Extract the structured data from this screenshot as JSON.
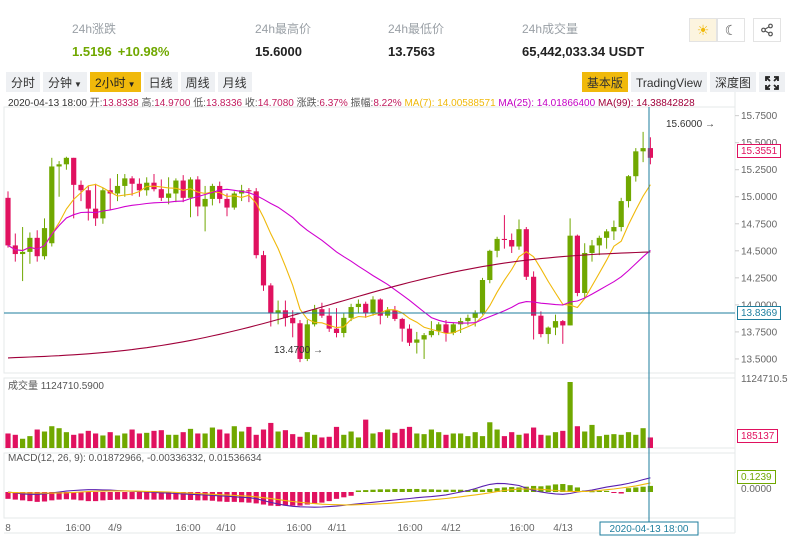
{
  "stats": {
    "change": {
      "label": "24h涨跌",
      "value": "1.5196",
      "percent": "+10.98%"
    },
    "high": {
      "label": "24h最高价",
      "value": "15.6000"
    },
    "low": {
      "label": "24h最低价",
      "value": "13.7563"
    },
    "volume": {
      "label": "24h成交量",
      "value": "65,442,033.34 USDT"
    }
  },
  "header_icons": [
    "sun-icon",
    "moon-icon",
    "share-icon"
  ],
  "toolbar": {
    "intervals": [
      {
        "label": "分时",
        "active": false,
        "dropdown": false
      },
      {
        "label": "分钟",
        "active": false,
        "dropdown": true
      },
      {
        "label": "2小时",
        "active": true,
        "dropdown": true
      },
      {
        "label": "日线",
        "active": false,
        "dropdown": false
      },
      {
        "label": "周线",
        "active": false,
        "dropdown": false
      },
      {
        "label": "月线",
        "active": false,
        "dropdown": false
      }
    ],
    "views": [
      {
        "label": "基本版",
        "active": true
      },
      {
        "label": "TradingView",
        "active": false
      },
      {
        "label": "深度图",
        "active": false
      }
    ]
  },
  "legend": {
    "time": "2020-04-13 18:00",
    "open_label": "开:",
    "open": "13.8338",
    "high_label": "高:",
    "high": "14.9700",
    "low_label": "低:",
    "low": "13.8336",
    "close_label": "收:",
    "close": "14.7080",
    "chg_label": "涨跌:",
    "chg": "6.37%",
    "amp_label": "振幅:",
    "amp": "8.22%",
    "ma7": "MA(7): 14.00588571",
    "ma25": "MA(25): 14.01866400",
    "ma99": "MA(99): 14.38842828"
  },
  "volume_legend": "成交量 1124710.5900",
  "macd_legend": "MACD(12, 26, 9): 0.01872966, -0.00336332, 0.01536634",
  "annotations": {
    "max_label": "15.6000",
    "min_label": "13.4700"
  },
  "price_tags": {
    "last": "15.3551",
    "cross": "13.8369",
    "volume_last": "185137",
    "volume_top": "1124710.5",
    "macd_last": "0.1239"
  },
  "colors": {
    "up": "#70a800",
    "down": "#e0115f",
    "ma7": "#f0b90b",
    "ma25": "#d000d0",
    "ma99": "#a0003a",
    "crosshair": "#1e7e9e",
    "accent": "#f0b90b"
  },
  "chart_data": {
    "type": "candlestick",
    "y_ticks": [
      "15.7500",
      "15.5000",
      "15.2500",
      "15.0000",
      "14.7500",
      "14.5000",
      "14.2500",
      "14.0000",
      "13.7500",
      "13.5000"
    ],
    "ylim": [
      13.37,
      15.83
    ],
    "x_ticks": [
      "8",
      "16:00",
      "4/9",
      "16:00",
      "4/10",
      "16:00",
      "4/11",
      "16:00",
      "4/12",
      "16:00",
      "4/13"
    ],
    "crosshair_time": "2020-04-13 18:00",
    "volume_axis_label": "1124710.5",
    "macd_axis_labels": [
      "0.1239",
      "0.0000"
    ],
    "candles": [
      [
        14.99,
        15.05,
        14.53,
        14.55
      ],
      [
        14.55,
        14.66,
        14.4,
        14.47
      ],
      [
        14.47,
        14.72,
        14.22,
        14.49
      ],
      [
        14.49,
        14.67,
        14.38,
        14.62
      ],
      [
        14.62,
        14.69,
        14.4,
        14.45
      ],
      [
        14.45,
        14.8,
        14.42,
        14.71
      ],
      [
        14.57,
        15.36,
        14.54,
        15.28
      ],
      [
        15.28,
        15.33,
        15.0,
        15.3
      ],
      [
        15.3,
        15.37,
        15.25,
        15.36
      ],
      [
        15.36,
        15.36,
        14.8,
        15.11
      ],
      [
        15.11,
        15.15,
        14.96,
        15.06
      ],
      [
        15.06,
        15.1,
        14.78,
        14.89
      ],
      [
        14.89,
        15.12,
        14.73,
        14.8
      ],
      [
        14.8,
        15.08,
        14.75,
        15.06
      ],
      [
        15.06,
        15.17,
        14.88,
        15.03
      ],
      [
        15.03,
        15.21,
        14.96,
        15.1
      ],
      [
        15.1,
        15.21,
        15.0,
        15.17
      ],
      [
        15.17,
        15.19,
        15.01,
        15.12
      ],
      [
        15.12,
        15.17,
        15.0,
        15.06
      ],
      [
        15.06,
        15.18,
        15.01,
        15.13
      ],
      [
        15.13,
        15.21,
        15.05,
        15.07
      ],
      [
        15.07,
        15.16,
        14.96,
        14.99
      ],
      [
        14.99,
        15.18,
        14.93,
        15.03
      ],
      [
        15.03,
        15.17,
        14.95,
        15.15
      ],
      [
        15.15,
        15.2,
        14.95,
        14.99
      ],
      [
        14.99,
        15.18,
        14.81,
        15.16
      ],
      [
        15.16,
        15.19,
        14.82,
        14.91
      ],
      [
        14.91,
        15.1,
        14.68,
        14.98
      ],
      [
        14.98,
        15.12,
        14.92,
        15.1
      ],
      [
        15.1,
        15.14,
        14.94,
        14.98
      ],
      [
        14.98,
        15.03,
        14.82,
        14.9
      ],
      [
        14.9,
        15.05,
        14.88,
        15.03
      ],
      [
        15.03,
        15.11,
        14.96,
        15.06
      ],
      [
        15.06,
        15.08,
        14.95,
        15.05
      ],
      [
        15.05,
        15.08,
        14.43,
        14.46
      ],
      [
        14.46,
        14.5,
        14.13,
        14.18
      ],
      [
        14.18,
        14.2,
        13.8,
        13.92
      ],
      [
        13.92,
        14.04,
        13.82,
        13.95
      ],
      [
        13.95,
        14.04,
        13.8,
        13.88
      ],
      [
        13.88,
        13.95,
        13.7,
        13.83
      ],
      [
        13.83,
        13.86,
        13.47,
        13.5
      ],
      [
        13.5,
        13.86,
        13.48,
        13.82
      ],
      [
        13.82,
        14.0,
        13.8,
        13.96
      ],
      [
        13.96,
        14.02,
        13.88,
        13.9
      ],
      [
        13.9,
        13.97,
        13.75,
        13.78
      ],
      [
        13.78,
        13.97,
        13.7,
        13.74
      ],
      [
        13.74,
        13.92,
        13.7,
        13.88
      ],
      [
        13.88,
        14.01,
        13.85,
        13.98
      ],
      [
        13.98,
        14.05,
        13.92,
        14.01
      ],
      [
        14.01,
        14.03,
        13.88,
        13.92
      ],
      [
        13.92,
        14.08,
        13.9,
        14.05
      ],
      [
        14.05,
        14.06,
        13.82,
        13.9
      ],
      [
        13.9,
        13.98,
        13.88,
        13.95
      ],
      [
        13.95,
        13.99,
        13.85,
        13.87
      ],
      [
        13.87,
        13.88,
        13.66,
        13.78
      ],
      [
        13.78,
        13.82,
        13.62,
        13.65
      ],
      [
        13.65,
        13.75,
        13.55,
        13.68
      ],
      [
        13.68,
        13.74,
        13.5,
        13.72
      ],
      [
        13.72,
        13.85,
        13.7,
        13.76
      ],
      [
        13.76,
        13.84,
        13.72,
        13.82
      ],
      [
        13.82,
        13.86,
        13.66,
        13.74
      ],
      [
        13.74,
        13.84,
        13.72,
        13.82
      ],
      [
        13.82,
        13.88,
        13.74,
        13.85
      ],
      [
        13.85,
        13.91,
        13.81,
        13.88
      ],
      [
        13.88,
        13.95,
        13.8,
        13.93
      ],
      [
        13.93,
        14.25,
        13.91,
        14.23
      ],
      [
        14.23,
        14.51,
        14.2,
        14.5
      ],
      [
        14.5,
        14.63,
        14.44,
        14.61
      ],
      [
        14.61,
        14.83,
        14.52,
        14.6
      ],
      [
        14.6,
        14.66,
        14.48,
        14.54
      ],
      [
        14.54,
        14.79,
        14.51,
        14.7
      ],
      [
        14.7,
        14.72,
        14.23,
        14.26
      ],
      [
        14.26,
        14.31,
        13.68,
        13.9
      ],
      [
        13.9,
        13.94,
        13.7,
        13.73
      ],
      [
        13.73,
        13.8,
        13.64,
        13.79
      ],
      [
        13.79,
        13.91,
        13.72,
        13.85
      ],
      [
        13.85,
        13.86,
        13.64,
        13.81
      ],
      [
        13.81,
        14.8,
        13.81,
        14.64
      ],
      [
        14.64,
        14.65,
        14.08,
        14.11
      ],
      [
        14.11,
        14.57,
        14.06,
        14.48
      ],
      [
        14.48,
        14.6,
        14.4,
        14.55
      ],
      [
        14.55,
        14.64,
        14.46,
        14.62
      ],
      [
        14.62,
        14.7,
        14.52,
        14.68
      ],
      [
        14.68,
        14.78,
        14.6,
        14.72
      ],
      [
        14.72,
        14.99,
        14.68,
        14.96
      ],
      [
        14.96,
        15.2,
        14.9,
        15.19
      ],
      [
        15.19,
        15.45,
        15.14,
        15.42
      ],
      [
        15.42,
        15.6,
        15.32,
        15.45
      ],
      [
        15.45,
        15.55,
        15.3,
        15.36
      ]
    ],
    "volumes": [
      0.22,
      0.2,
      0.14,
      0.18,
      0.28,
      0.25,
      0.33,
      0.3,
      0.24,
      0.2,
      0.22,
      0.26,
      0.22,
      0.19,
      0.24,
      0.19,
      0.22,
      0.28,
      0.22,
      0.23,
      0.26,
      0.27,
      0.2,
      0.2,
      0.24,
      0.29,
      0.22,
      0.22,
      0.31,
      0.28,
      0.22,
      0.33,
      0.25,
      0.32,
      0.2,
      0.28,
      0.38,
      0.25,
      0.27,
      0.21,
      0.17,
      0.24,
      0.2,
      0.16,
      0.17,
      0.32,
      0.2,
      0.25,
      0.16,
      0.43,
      0.22,
      0.24,
      0.28,
      0.23,
      0.29,
      0.32,
      0.22,
      0.21,
      0.28,
      0.24,
      0.2,
      0.22,
      0.22,
      0.18,
      0.24,
      0.18,
      0.39,
      0.28,
      0.18,
      0.24,
      0.2,
      0.22,
      0.31,
      0.2,
      0.19,
      0.24,
      0.26,
      1.0,
      0.33,
      0.25,
      0.35,
      0.18,
      0.2,
      0.21,
      0.2,
      0.24,
      0.2,
      0.3,
      0.16
    ],
    "macd_hist": [
      -0.018,
      -0.02,
      -0.022,
      -0.024,
      -0.026,
      -0.025,
      -0.022,
      -0.02,
      -0.019,
      -0.02,
      -0.022,
      -0.024,
      -0.024,
      -0.022,
      -0.021,
      -0.02,
      -0.019,
      -0.019,
      -0.019,
      -0.02,
      -0.02,
      -0.02,
      -0.02,
      -0.02,
      -0.021,
      -0.021,
      -0.022,
      -0.022,
      -0.023,
      -0.025,
      -0.026,
      -0.026,
      -0.027,
      -0.028,
      -0.03,
      -0.033,
      -0.036,
      -0.037,
      -0.036,
      -0.036,
      -0.036,
      -0.033,
      -0.03,
      -0.028,
      -0.024,
      -0.018,
      -0.014,
      -0.01,
      0.004,
      0.005,
      0.006,
      0.007,
      0.007,
      0.008,
      0.008,
      0.008,
      0.008,
      0.007,
      0.007,
      0.006,
      0.006,
      0.006,
      0.006,
      0.005,
      0.007,
      0.006,
      0.008,
      0.01,
      0.012,
      0.013,
      0.012,
      0.014,
      0.016,
      0.015,
      0.017,
      0.02,
      0.021,
      0.018,
      0.012,
      0.004,
      0.002,
      0.003,
      0.003,
      -0.002,
      -0.004,
      0.01,
      0.012,
      0.014,
      0.016
    ],
    "macd_line": [
      0.0,
      -0.005,
      -0.01,
      -0.012,
      -0.012,
      -0.01,
      -0.005,
      0.0,
      0.005,
      0.008,
      0.01,
      0.012,
      0.012,
      0.011,
      0.01,
      0.008,
      0.006,
      0.004,
      0.002,
      0.0,
      -0.002,
      -0.004,
      -0.006,
      -0.008,
      -0.01,
      -0.012,
      -0.014,
      -0.016,
      -0.018,
      -0.02,
      -0.022,
      -0.025,
      -0.028,
      -0.03,
      -0.035,
      -0.045,
      -0.055,
      -0.063,
      -0.07,
      -0.075,
      -0.078,
      -0.079,
      -0.08,
      -0.079,
      -0.077,
      -0.074,
      -0.07,
      -0.066,
      -0.062,
      -0.058,
      -0.054,
      -0.05,
      -0.046,
      -0.042,
      -0.038,
      -0.034,
      -0.03,
      -0.027,
      -0.024,
      -0.02,
      -0.015,
      -0.008,
      0.0,
      0.008,
      0.018,
      0.03,
      0.04,
      0.045,
      0.044,
      0.04,
      0.034,
      0.02,
      0.008,
      0.0,
      -0.006,
      -0.01,
      -0.012,
      -0.008,
      0.0,
      0.005,
      0.01,
      0.018,
      0.026,
      0.032,
      0.038,
      0.045,
      0.055,
      0.065,
      0.075
    ],
    "signal_line": [
      -0.002,
      -0.003,
      -0.004,
      -0.005,
      -0.006,
      -0.006,
      -0.006,
      -0.005,
      -0.004,
      -0.002,
      0.0,
      0.002,
      0.004,
      0.005,
      0.006,
      0.006,
      0.006,
      0.005,
      0.004,
      0.003,
      0.002,
      0.001,
      0.0,
      -0.002,
      -0.004,
      -0.006,
      -0.008,
      -0.01,
      -0.012,
      -0.014,
      -0.016,
      -0.018,
      -0.02,
      -0.022,
      -0.025,
      -0.03,
      -0.035,
      -0.04,
      -0.045,
      -0.05,
      -0.054,
      -0.058,
      -0.061,
      -0.064,
      -0.066,
      -0.067,
      -0.068,
      -0.068,
      -0.067,
      -0.066,
      -0.064,
      -0.062,
      -0.06,
      -0.057,
      -0.054,
      -0.051,
      -0.048,
      -0.045,
      -0.041,
      -0.038,
      -0.034,
      -0.03,
      -0.025,
      -0.02,
      -0.015,
      -0.01,
      -0.004,
      0.002,
      0.008,
      0.012,
      0.015,
      0.016,
      0.016,
      0.014,
      0.011,
      0.008,
      0.005,
      0.003,
      0.002,
      0.003,
      0.005,
      0.008,
      0.012,
      0.016,
      0.021,
      0.026,
      0.032,
      0.04,
      0.048
    ]
  }
}
